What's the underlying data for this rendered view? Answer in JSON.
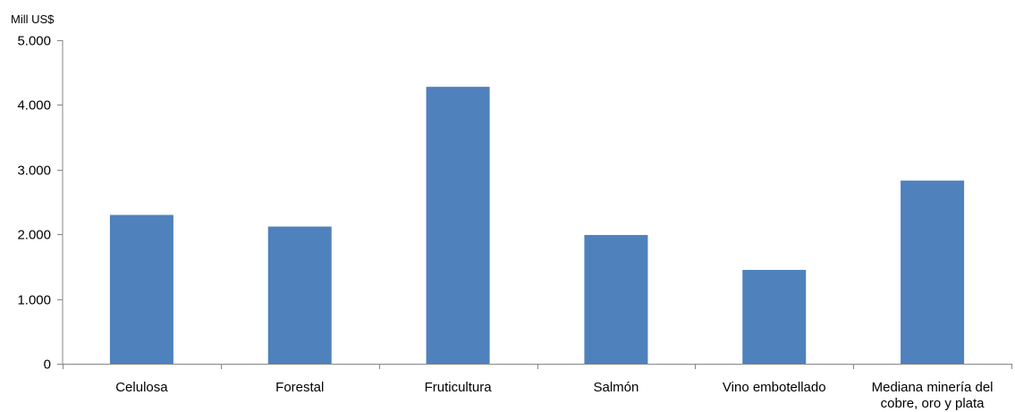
{
  "chart_data": {
    "type": "bar",
    "title": "",
    "xlabel": "",
    "ylabel": "Mill US$",
    "categories": [
      "Celulosa",
      "Forestal",
      "Fruticultura",
      "Salmón",
      "Vino embotellado",
      "Mediana minería del cobre, oro y plata"
    ],
    "category_label_lines": [
      [
        "Celulosa"
      ],
      [
        "Forestal"
      ],
      [
        "Fruticultura"
      ],
      [
        "Salmón"
      ],
      [
        "Vino embotellado"
      ],
      [
        "Mediana minería del",
        "cobre, oro y plata"
      ]
    ],
    "values": [
      2300,
      2120,
      4280,
      1990,
      1450,
      2830
    ],
    "ylim": [
      0,
      5000
    ],
    "yticks": [
      0,
      1000,
      2000,
      3000,
      4000,
      5000
    ],
    "ytick_labels": [
      "0",
      "1.000",
      "2.000",
      "3.000",
      "4.000",
      "5.000"
    ],
    "grid": false,
    "legend": "none",
    "bar_color": "#4f81bd",
    "axis_color": "#868686"
  }
}
